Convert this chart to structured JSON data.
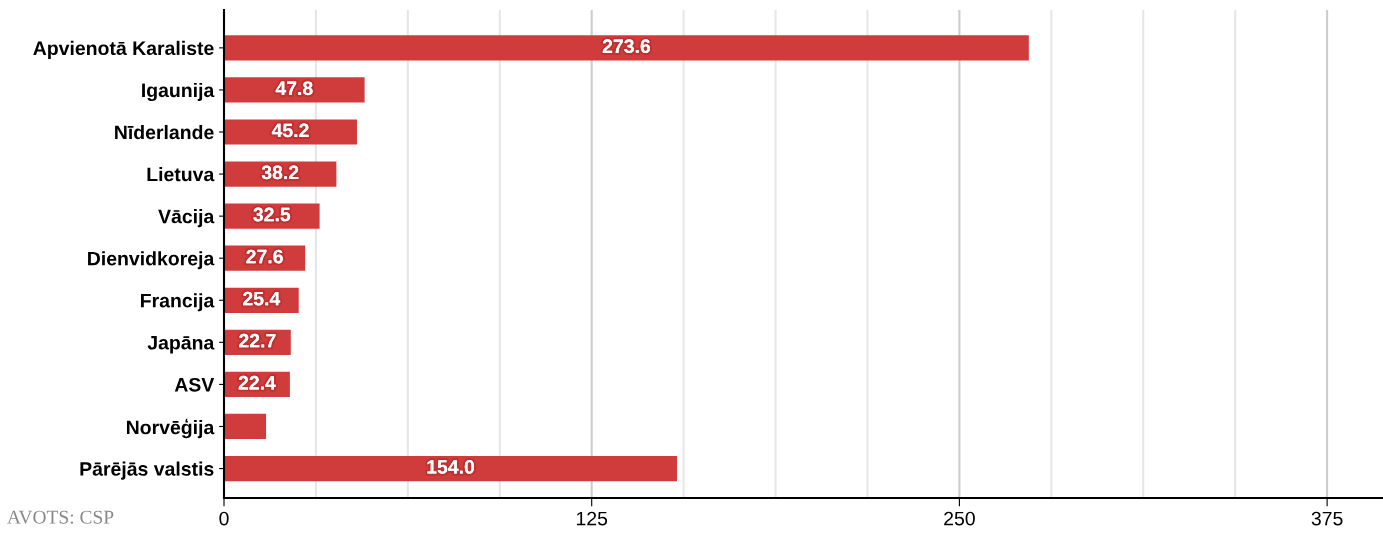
{
  "chart_data": {
    "type": "bar",
    "orientation": "horizontal",
    "categories": [
      "Apvienotā Karaliste",
      "Igaunija",
      "Nīderlande",
      "Lietuva",
      "Vācija",
      "Dienvidkoreja",
      "Francija",
      "Japāna",
      "ASV",
      "Norvēģija",
      "Pārējās valstis"
    ],
    "values": [
      273.6,
      47.8,
      45.2,
      38.2,
      32.5,
      27.6,
      25.4,
      22.7,
      22.4,
      14.3,
      154.0
    ],
    "value_labels": [
      "273.6",
      "47.8",
      "45.2",
      "38.2",
      "32.5",
      "27.6",
      "25.4",
      "22.7",
      "22.4",
      null,
      "154.0"
    ],
    "color": "#d03c3c",
    "xlim": [
      0,
      394
    ],
    "xticks": [
      0,
      {
        "value": 31.25,
        "label": null
      },
      {
        "value": 62.5,
        "label": null
      },
      {
        "value": 93.75,
        "label": null
      },
      125,
      {
        "value": 156.25,
        "label": null
      },
      {
        "value": 187.5,
        "label": null
      },
      {
        "value": 218.75,
        "label": null
      },
      250,
      {
        "value": 281.25,
        "label": null
      },
      {
        "value": 312.5,
        "label": null
      },
      {
        "value": 343.75,
        "label": null
      },
      375
    ],
    "grid": "x",
    "annotations": [
      "AVOTS: CSP"
    ]
  }
}
